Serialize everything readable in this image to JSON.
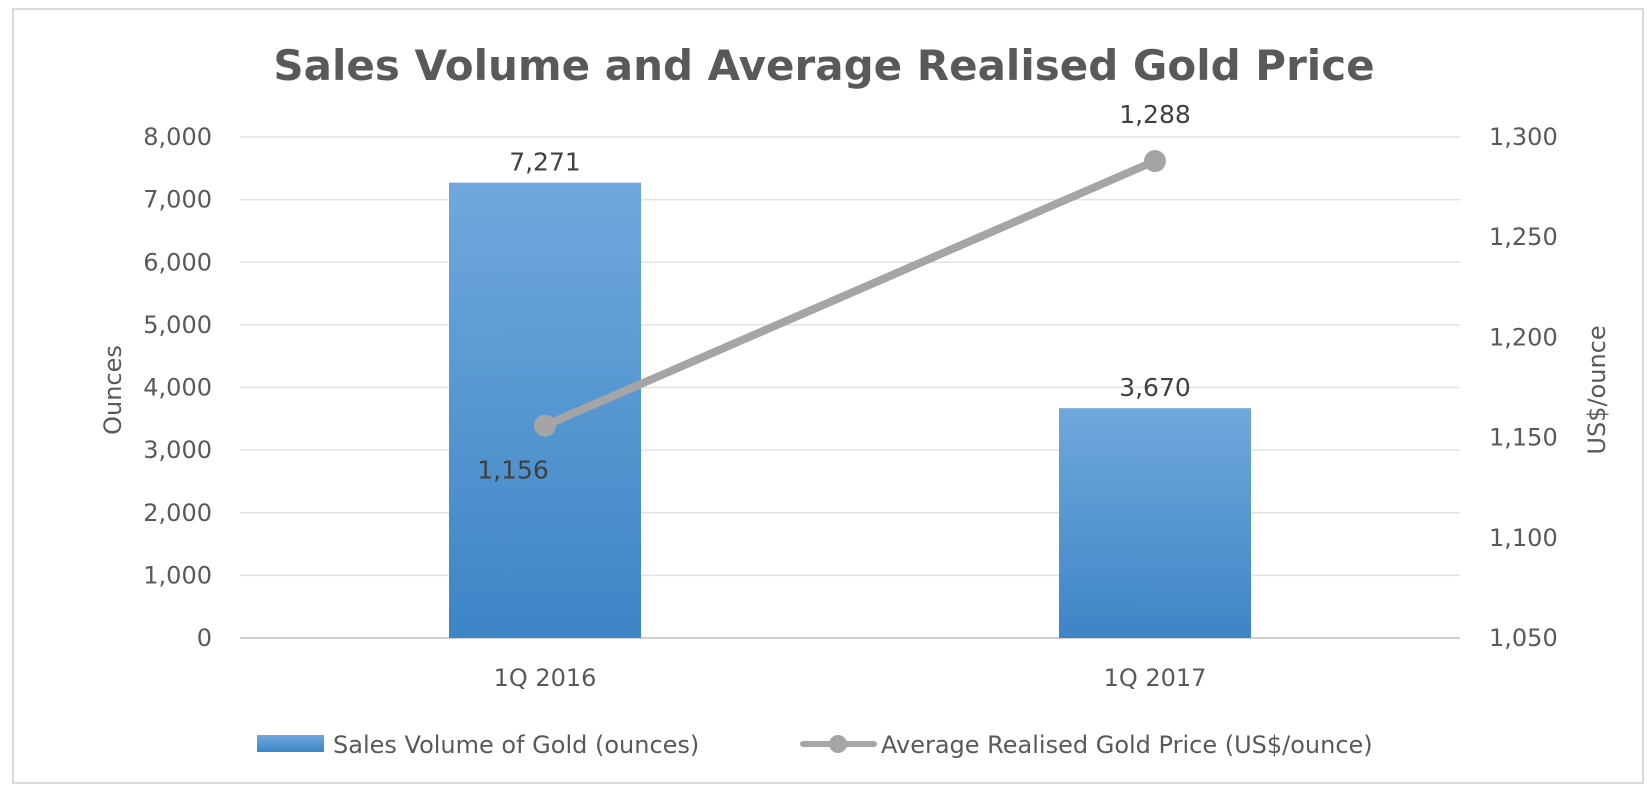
{
  "chart_data": {
    "type": "bar",
    "title": "Sales Volume and Average Realised Gold Price",
    "categories": [
      "1Q 2016",
      "1Q 2017"
    ],
    "series": [
      {
        "name": "Sales Volume of Gold (ounces)",
        "type": "bar",
        "axis": "left",
        "values": [
          7271,
          3670
        ],
        "labels": [
          "7,271",
          "3,670"
        ],
        "color": "#5b9bd5"
      },
      {
        "name": "Average Realised Gold Price (US$/ounce)",
        "type": "line",
        "axis": "right",
        "values": [
          1156,
          1288
        ],
        "labels": [
          "1,156",
          "1,288"
        ],
        "color": "#a5a5a5"
      }
    ],
    "ylabel": "Ounces",
    "ylim": [
      0,
      8000
    ],
    "yticks": [
      "0",
      "1,000",
      "2,000",
      "3,000",
      "4,000",
      "5,000",
      "6,000",
      "7,000",
      "8,000"
    ],
    "y2label": "US$/ounce",
    "y2lim": [
      1050,
      1300
    ],
    "y2ticks": [
      "1,050",
      "1,100",
      "1,150",
      "1,200",
      "1,250",
      "1,300"
    ],
    "grid": true,
    "legend": "bottom"
  }
}
